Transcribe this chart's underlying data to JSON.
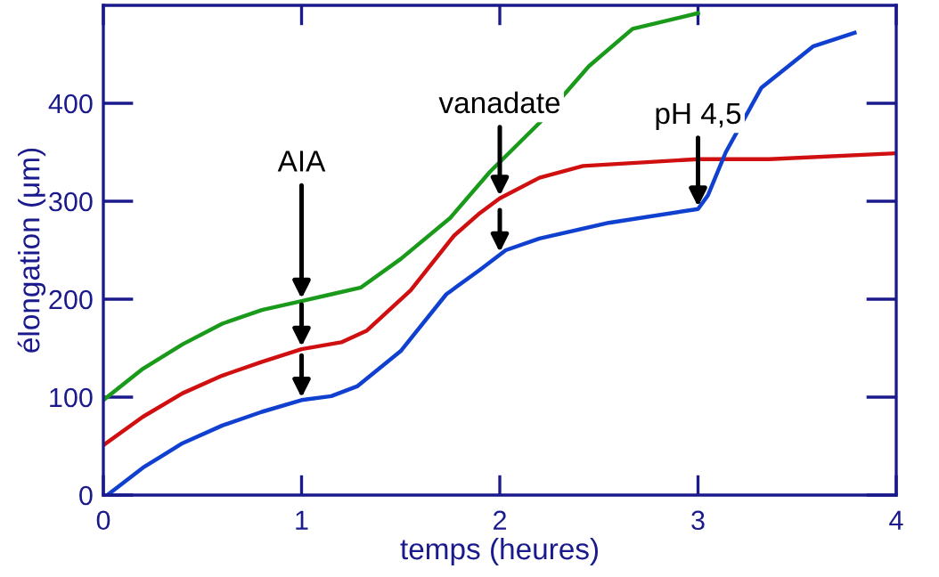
{
  "chart_data": {
    "type": "line",
    "xlabel": "temps (heures)",
    "ylabel": "élongation (μm)",
    "xlim": [
      0,
      4
    ],
    "ylim": [
      0,
      500
    ],
    "xticks": [
      0,
      1,
      2,
      3,
      4
    ],
    "yticks": [
      0,
      100,
      200,
      300,
      400
    ],
    "grid": false,
    "legend": false,
    "marker": "none",
    "line_style": "solid",
    "series": [
      {
        "color": "#1a9a1a",
        "x": [
          0,
          0.2,
          0.4,
          0.6,
          0.8,
          1.0,
          1.15,
          1.3,
          1.5,
          1.75,
          1.95,
          2.2,
          2.45,
          2.67,
          3.0
        ],
        "values": [
          97,
          129,
          154,
          175,
          189,
          198,
          205,
          212,
          241,
          283,
          330,
          380,
          438,
          476,
          492
        ]
      },
      {
        "color": "#d01010",
        "x": [
          0,
          0.2,
          0.4,
          0.6,
          0.8,
          1.0,
          1.2,
          1.33,
          1.55,
          1.77,
          1.9,
          2.0,
          2.2,
          2.42,
          3.0,
          3.36,
          4.0
        ],
        "values": [
          51,
          80,
          104,
          122,
          136,
          149,
          156,
          168,
          209,
          265,
          288,
          303,
          324,
          336,
          343,
          343,
          349
        ]
      },
      {
        "color": "#1040d0",
        "x": [
          0.02,
          0.2,
          0.4,
          0.6,
          0.8,
          1.0,
          1.15,
          1.28,
          1.5,
          1.73,
          1.9,
          2.03,
          2.2,
          2.55,
          3.0,
          3.05,
          3.14,
          3.32,
          3.58,
          3.79
        ],
        "values": [
          0,
          28,
          53,
          71,
          85,
          97,
          101,
          111,
          147,
          205,
          230,
          250,
          262,
          278,
          292,
          306,
          350,
          416,
          458,
          472
        ]
      }
    ],
    "annotations": [
      {
        "text": "AIA",
        "x": 1,
        "y": 198
      },
      {
        "text": "vanadate",
        "x": 2,
        "y": 303
      },
      {
        "text": "pH 4,5",
        "x": 3,
        "y": 292
      }
    ]
  }
}
